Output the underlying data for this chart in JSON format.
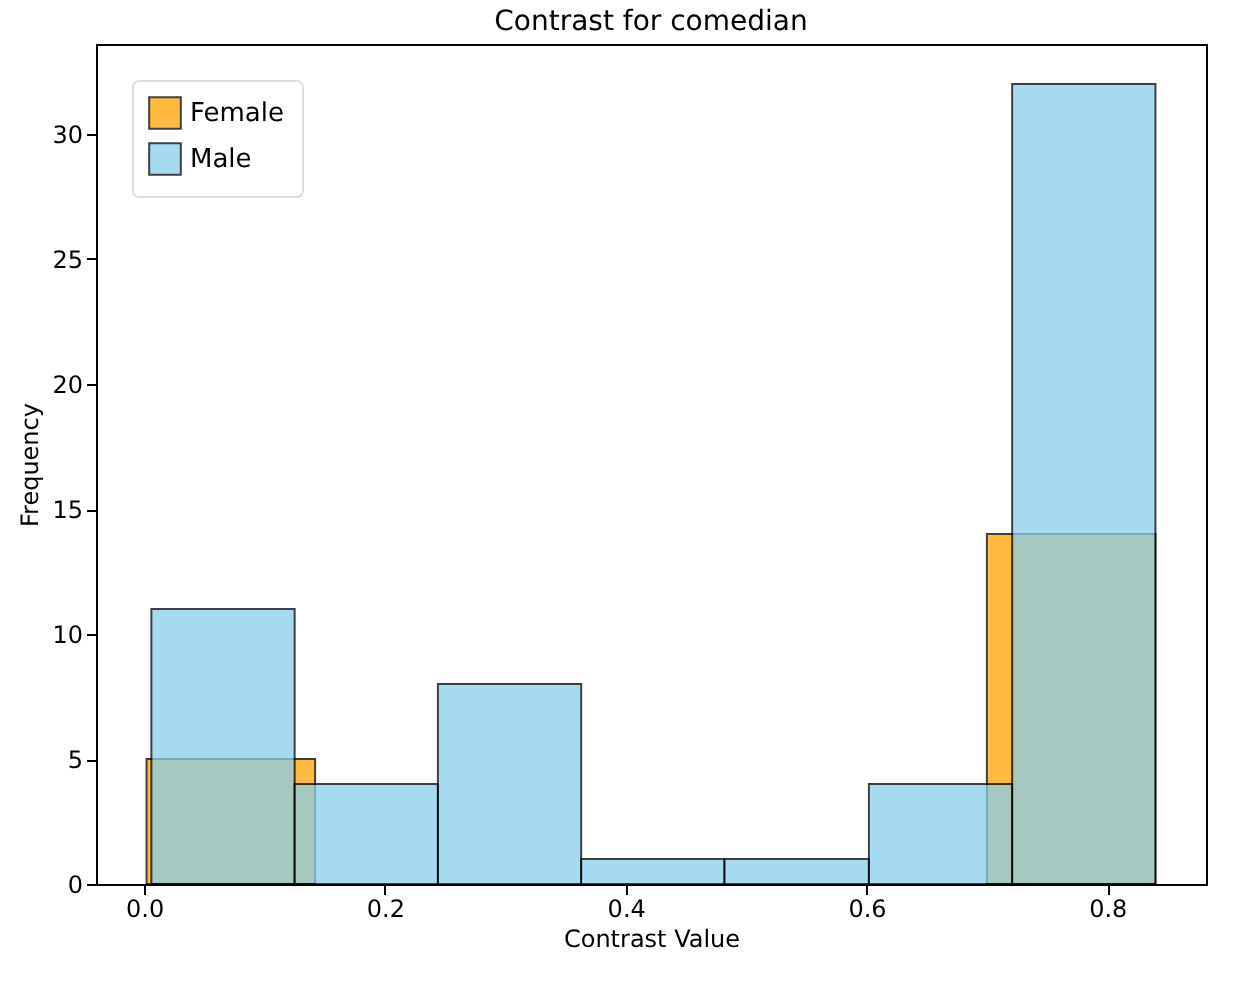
{
  "chart_data": {
    "type": "histogram",
    "title": "Contrast for comedian",
    "xlabel": "Contrast Value",
    "ylabel": "Frequency",
    "bins": [
      0.006,
      0.125,
      0.244,
      0.363,
      0.482,
      0.602,
      0.721,
      0.84
    ],
    "series": [
      {
        "name": "Female",
        "color": "#ffa500",
        "bins": [
          0.002,
          0.142,
          0.7,
          0.84
        ],
        "values": [
          5,
          null,
          14
        ]
      },
      {
        "name": "Male",
        "color": "#87ceeb",
        "values": [
          11,
          4,
          8,
          1,
          1,
          4,
          32
        ]
      }
    ],
    "xlim": [
      -0.04,
      0.882
    ],
    "xticks": [
      {
        "value": 0,
        "label": "0.0"
      },
      0.2,
      0.4,
      0.6,
      0.8
    ],
    "ylim": [
      0,
      33.6
    ],
    "yticks": [
      0,
      5,
      10,
      15,
      20,
      25,
      30
    ],
    "grid": false,
    "legend": "top left"
  }
}
